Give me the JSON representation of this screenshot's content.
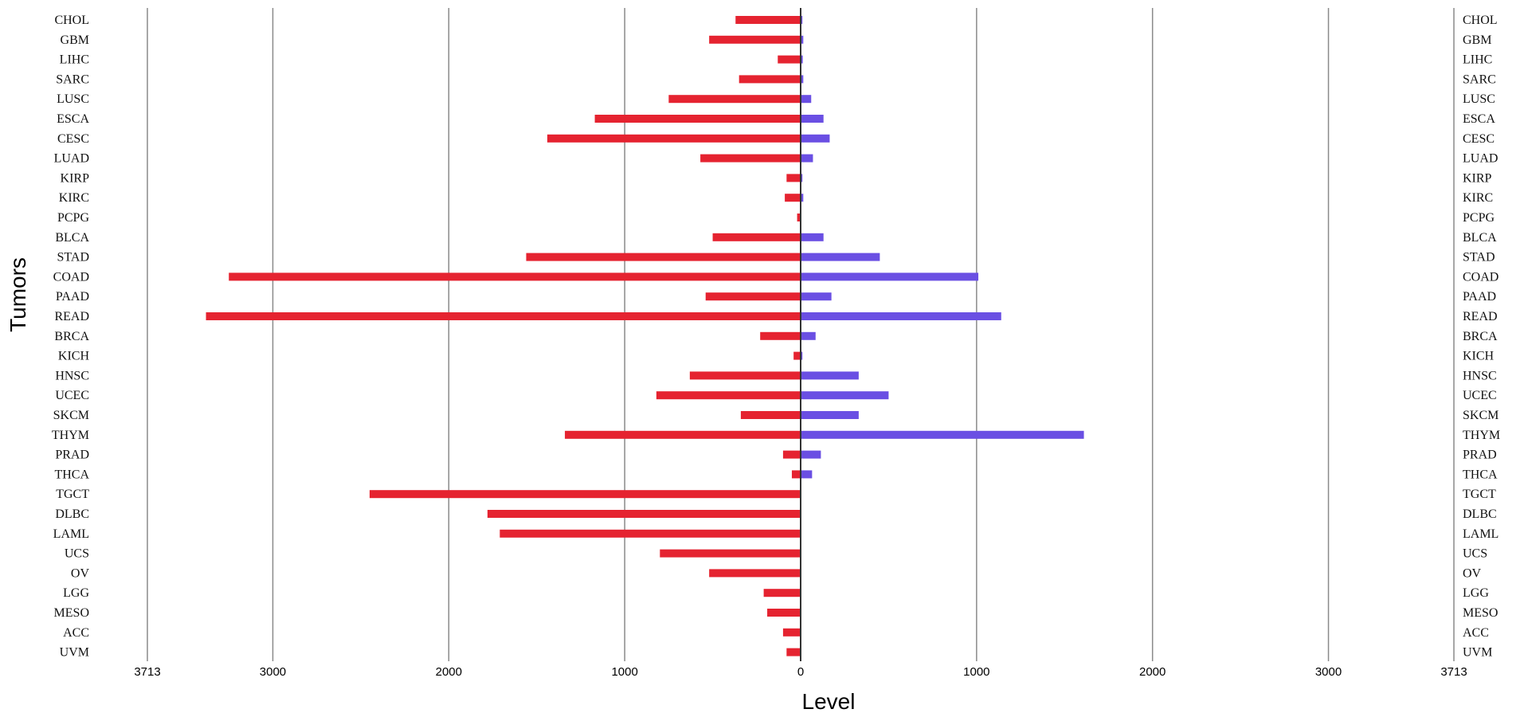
{
  "chart_data": {
    "type": "bar",
    "orientation": "horizontal",
    "title": "",
    "xlabel": "Level",
    "ylabel": "Tumors",
    "xlim": [
      -3713,
      3713
    ],
    "x_ticks": [
      -3713,
      -3000,
      -2000,
      -1000,
      0,
      1000,
      2000,
      3000,
      3713
    ],
    "x_tick_labels": [
      "3713",
      "3000",
      "2000",
      "1000",
      "0",
      "1000",
      "2000",
      "3000",
      "3713"
    ],
    "grid": true,
    "categories": [
      "CHOL",
      "GBM",
      "LIHC",
      "SARC",
      "LUSC",
      "ESCA",
      "CESC",
      "LUAD",
      "KIRP",
      "KIRC",
      "PCPG",
      "BLCA",
      "STAD",
      "COAD",
      "PAAD",
      "READ",
      "BRCA",
      "KICH",
      "HNSC",
      "UCEC",
      "SKCM",
      "THYM",
      "PRAD",
      "THCA",
      "TGCT",
      "DLBC",
      "LAML",
      "UCS",
      "OV",
      "LGG",
      "MESO",
      "ACC",
      "UVM"
    ],
    "series": [
      {
        "side": "left",
        "color": "#e52330",
        "values": [
          370,
          520,
          130,
          350,
          750,
          1170,
          1440,
          570,
          80,
          90,
          20,
          500,
          1560,
          3250,
          540,
          3380,
          230,
          40,
          630,
          820,
          340,
          1340,
          100,
          50,
          2450,
          1780,
          1710,
          800,
          520,
          210,
          190,
          100,
          80
        ]
      },
      {
        "side": "right",
        "color": "#6a4fe3",
        "values": [
          10,
          15,
          12,
          15,
          60,
          130,
          165,
          70,
          10,
          15,
          3,
          130,
          450,
          1010,
          175,
          1140,
          85,
          10,
          330,
          500,
          330,
          1610,
          115,
          65,
          0,
          0,
          0,
          0,
          0,
          0,
          0,
          0,
          0
        ]
      }
    ]
  },
  "colors": {
    "negative_bar": "#e52330",
    "positive_bar": "#6a4fe3",
    "gridline": "#8a8a8a",
    "axis": "#333333"
  }
}
